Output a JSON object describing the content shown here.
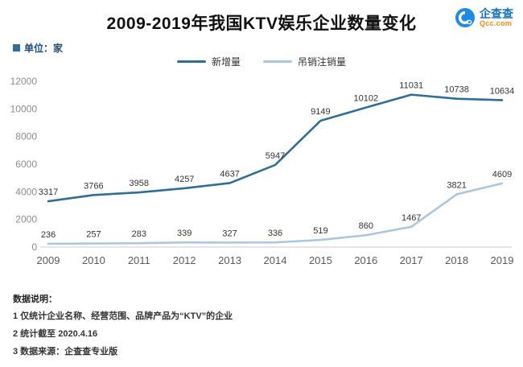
{
  "title": "2009-2019年我国KTV娱乐企业数量变化",
  "unit_label": "单位：家",
  "logo": {
    "name": "企查查",
    "domain": "Qcc.com"
  },
  "legend": [
    {
      "label": "新增量",
      "color": "#2e6e99"
    },
    {
      "label": "吊销注销量",
      "color": "#a9c7e0"
    }
  ],
  "chart_data": {
    "type": "line",
    "title": "2009-2019年我国KTV娱乐企业数量变化",
    "categories": [
      "2009",
      "2010",
      "2011",
      "2012",
      "2013",
      "2014",
      "2015",
      "2016",
      "2017",
      "2018",
      "2019"
    ],
    "series": [
      {
        "name": "新增量",
        "color": "#2e6e99",
        "values": [
          3317,
          3766,
          3958,
          4257,
          4637,
          5947,
          9149,
          10102,
          11031,
          10738,
          10634
        ]
      },
      {
        "name": "吊销注销量",
        "color": "#a9c7e0",
        "values": [
          236,
          257,
          283,
          339,
          327,
          336,
          519,
          860,
          1467,
          3821,
          4609
        ]
      }
    ],
    "xlabel": "",
    "ylabel": "单位：家",
    "ylim": [
      0,
      12000
    ],
    "yticks": [
      0,
      2000,
      4000,
      6000,
      8000,
      10000,
      12000
    ],
    "grid": false,
    "legend_position": "top"
  },
  "notes": {
    "heading": "数据说明：",
    "items": [
      "1 仅统计企业名称、经营范围、品牌产品为“KTV”的企业",
      "2 统计截至 2020.4.16",
      "3 数据来源：企查查专业版"
    ]
  }
}
